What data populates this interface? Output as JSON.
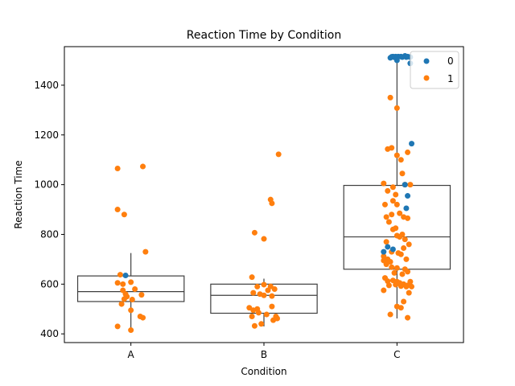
{
  "chart_data": {
    "type": "scatter",
    "subtype": "box-strip",
    "title": "Reaction Time by Condition",
    "xlabel": "Condition",
    "ylabel": "Reaction Time",
    "categories": [
      "A",
      "B",
      "C"
    ],
    "ylim": [
      365,
      1555
    ],
    "yticks": [
      400,
      600,
      800,
      1000,
      1200,
      1400
    ],
    "grid": false,
    "legend": {
      "position": "top-right",
      "entries": [
        "0",
        "1"
      ]
    },
    "colors": {
      "0": "#1f77b4",
      "1": "#ff7f0e",
      "box": "#3f3f3f"
    },
    "boxes": [
      {
        "category": "A",
        "whisker_low": 415,
        "q1": 530,
        "median": 570,
        "q3": 633,
        "whisker_high": 725
      },
      {
        "category": "B",
        "whisker_low": 430,
        "q1": 483,
        "median": 555,
        "q3": 600,
        "whisker_high": 622
      },
      {
        "category": "C",
        "whisker_low": 462,
        "q1": 660,
        "median": 790,
        "q3": 997,
        "whisker_high": 1510
      }
    ],
    "series": [
      {
        "name": "0",
        "points": [
          [
            "A",
            -0.04,
            635
          ],
          [
            "C",
            -0.03,
            1515
          ],
          [
            "C",
            -0.01,
            1515
          ],
          [
            "C",
            0.01,
            1515
          ],
          [
            "C",
            0.03,
            1515
          ],
          [
            "C",
            0.06,
            1518
          ],
          [
            "C",
            -0.02,
            1512
          ],
          [
            "C",
            0.04,
            1513
          ],
          [
            "C",
            0.07,
            1513
          ],
          [
            "C",
            -0.05,
            1510
          ],
          [
            "C",
            0.08,
            1515
          ],
          [
            "C",
            0.1,
            1513
          ],
          [
            "C",
            -0.04,
            1514
          ],
          [
            "C",
            0.1,
            1488
          ],
          [
            "C",
            0.0,
            1500
          ],
          [
            "C",
            0.11,
            1165
          ],
          [
            "C",
            0.06,
            1000
          ],
          [
            "C",
            0.08,
            955
          ],
          [
            "C",
            0.07,
            905
          ],
          [
            "C",
            -0.07,
            750
          ],
          [
            "C",
            -0.1,
            730
          ],
          [
            "C",
            -0.03,
            740
          ]
        ]
      },
      {
        "name": "1",
        "points": [
          [
            "A",
            -0.1,
            1065
          ],
          [
            "A",
            0.09,
            1073
          ],
          [
            "A",
            -0.1,
            900
          ],
          [
            "A",
            -0.05,
            880
          ],
          [
            "A",
            0.11,
            730
          ],
          [
            "A",
            -0.08,
            638
          ],
          [
            "A",
            -0.1,
            605
          ],
          [
            "A",
            -0.06,
            600
          ],
          [
            "A",
            0.0,
            608
          ],
          [
            "A",
            0.03,
            580
          ],
          [
            "A",
            -0.06,
            575
          ],
          [
            "A",
            -0.04,
            560
          ],
          [
            "A",
            -0.03,
            550
          ],
          [
            "A",
            0.08,
            557
          ],
          [
            "A",
            -0.05,
            540
          ],
          [
            "A",
            0.01,
            538
          ],
          [
            "A",
            -0.07,
            520
          ],
          [
            "A",
            0.0,
            495
          ],
          [
            "A",
            0.07,
            470
          ],
          [
            "A",
            0.09,
            465
          ],
          [
            "A",
            -0.1,
            430
          ],
          [
            "A",
            0.0,
            415
          ],
          [
            "B",
            0.11,
            1122
          ],
          [
            "B",
            0.05,
            940
          ],
          [
            "B",
            0.06,
            925
          ],
          [
            "B",
            -0.07,
            807
          ],
          [
            "B",
            0.0,
            782
          ],
          [
            "B",
            -0.09,
            628
          ],
          [
            "B",
            0.0,
            598
          ],
          [
            "B",
            -0.05,
            590
          ],
          [
            "B",
            0.05,
            591
          ],
          [
            "B",
            0.08,
            580
          ],
          [
            "B",
            0.03,
            575
          ],
          [
            "B",
            -0.08,
            565
          ],
          [
            "B",
            -0.03,
            560
          ],
          [
            "B",
            0.0,
            555
          ],
          [
            "B",
            0.06,
            552
          ],
          [
            "B",
            -0.11,
            505
          ],
          [
            "B",
            -0.05,
            500
          ],
          [
            "B",
            0.06,
            510
          ],
          [
            "B",
            -0.08,
            495
          ],
          [
            "B",
            -0.04,
            485
          ],
          [
            "B",
            -0.09,
            470
          ],
          [
            "B",
            0.02,
            478
          ],
          [
            "B",
            0.09,
            470
          ],
          [
            "B",
            0.07,
            455
          ],
          [
            "B",
            0.1,
            462
          ],
          [
            "B",
            -0.02,
            440
          ],
          [
            "B",
            -0.07,
            432
          ],
          [
            "C",
            -0.05,
            1350
          ],
          [
            "C",
            0.0,
            1308
          ],
          [
            "C",
            -0.07,
            1143
          ],
          [
            "C",
            -0.04,
            1148
          ],
          [
            "C",
            0.0,
            1118
          ],
          [
            "C",
            0.03,
            1100
          ],
          [
            "C",
            0.08,
            1130
          ],
          [
            "C",
            0.04,
            1045
          ],
          [
            "C",
            -0.1,
            1005
          ],
          [
            "C",
            -0.03,
            990
          ],
          [
            "C",
            0.06,
            1000
          ],
          [
            "C",
            0.1,
            1000
          ],
          [
            "C",
            -0.07,
            975
          ],
          [
            "C",
            -0.01,
            960
          ],
          [
            "C",
            -0.03,
            935
          ],
          [
            "C",
            0.0,
            920
          ],
          [
            "C",
            -0.09,
            920
          ],
          [
            "C",
            -0.04,
            880
          ],
          [
            "C",
            0.02,
            885
          ],
          [
            "C",
            0.05,
            870
          ],
          [
            "C",
            0.08,
            865
          ],
          [
            "C",
            -0.08,
            870
          ],
          [
            "C",
            -0.06,
            850
          ],
          [
            "C",
            -0.03,
            820
          ],
          [
            "C",
            -0.01,
            825
          ],
          [
            "C",
            0.0,
            795
          ],
          [
            "C",
            0.02,
            790
          ],
          [
            "C",
            0.04,
            800
          ],
          [
            "C",
            0.06,
            780
          ],
          [
            "C",
            0.09,
            760
          ],
          [
            "C",
            -0.08,
            770
          ],
          [
            "C",
            0.05,
            745
          ],
          [
            "C",
            -0.04,
            730
          ],
          [
            "C",
            0.01,
            725
          ],
          [
            "C",
            0.03,
            720
          ],
          [
            "C",
            -0.1,
            712
          ],
          [
            "C",
            -0.07,
            700
          ],
          [
            "C",
            -0.05,
            690
          ],
          [
            "C",
            0.07,
            700
          ],
          [
            "C",
            -0.1,
            695
          ],
          [
            "C",
            -0.08,
            680
          ],
          [
            "C",
            -0.04,
            668
          ],
          [
            "C",
            0.0,
            665
          ],
          [
            "C",
            0.06,
            660
          ],
          [
            "C",
            0.08,
            650
          ],
          [
            "C",
            -0.02,
            645
          ],
          [
            "C",
            0.04,
            640
          ],
          [
            "C",
            -0.09,
            625
          ],
          [
            "C",
            -0.07,
            612
          ],
          [
            "C",
            -0.03,
            615
          ],
          [
            "C",
            0.0,
            610
          ],
          [
            "C",
            0.02,
            605
          ],
          [
            "C",
            0.05,
            600
          ],
          [
            "C",
            0.08,
            595
          ],
          [
            "C",
            0.1,
            610
          ],
          [
            "C",
            -0.06,
            595
          ],
          [
            "C",
            -0.01,
            598
          ],
          [
            "C",
            0.03,
            592
          ],
          [
            "C",
            0.07,
            590
          ],
          [
            "C",
            0.11,
            590
          ],
          [
            "C",
            -0.1,
            575
          ],
          [
            "C",
            0.09,
            565
          ],
          [
            "C",
            0.05,
            530
          ],
          [
            "C",
            0.0,
            510
          ],
          [
            "C",
            0.03,
            505
          ],
          [
            "C",
            -0.05,
            478
          ],
          [
            "C",
            0.08,
            465
          ]
        ]
      }
    ]
  }
}
